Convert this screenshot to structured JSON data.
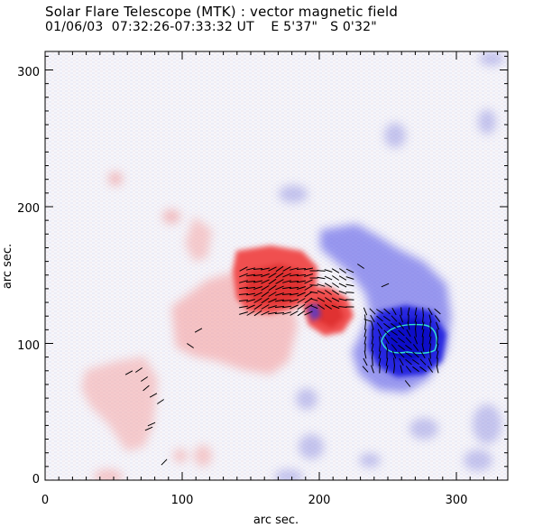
{
  "header": {
    "title": "Solar Flare Telescope (MTK) : vector magnetic field",
    "subtitle": "01/06/03  07:32:26-07:33:32 UT    E 5'37\"   S 0'32\""
  },
  "chart_data": {
    "type": "heatmap",
    "xlabel": "arc sec.",
    "ylabel": "arc sec.",
    "xlim": [
      0,
      340
    ],
    "ylim": [
      0,
      315
    ],
    "xticks": [
      "0",
      "100",
      "200",
      "300"
    ],
    "yticks": [
      "0",
      "100",
      "200",
      "300"
    ],
    "colors": {
      "positive_field": "#ff3030",
      "negative_field": "#2020e0",
      "background": "#f4f4fb",
      "contour": "#30e0d0",
      "vectors": "#000000"
    }
  }
}
